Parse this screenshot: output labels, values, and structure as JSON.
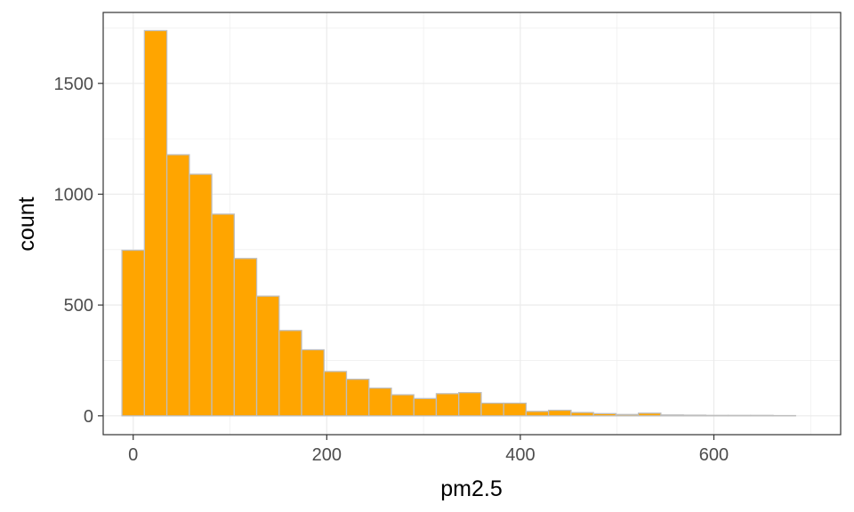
{
  "chart_data": {
    "type": "bar",
    "subtype": "histogram",
    "title": "",
    "xlabel": "pm2.5",
    "ylabel": "count",
    "xlim": [
      -31,
      731
    ],
    "ylim": [
      -85,
      1820
    ],
    "x_ticks": [
      0,
      200,
      400,
      600
    ],
    "y_ticks": [
      0,
      500,
      1000,
      1500
    ],
    "x_tick_labels": [
      "0",
      "200",
      "400",
      "600"
    ],
    "y_tick_labels": [
      "0",
      "500",
      "1000",
      "1500"
    ],
    "bin_width": 23.2,
    "bin_start": -11.6,
    "values": [
      747,
      1738,
      1178,
      1090,
      910,
      710,
      540,
      385,
      298,
      200,
      165,
      125,
      95,
      78,
      100,
      105,
      57,
      57,
      20,
      25,
      15,
      10,
      6,
      12,
      4,
      3,
      2,
      2,
      2,
      1
    ],
    "grid": true,
    "theme": "bw",
    "colors": {
      "bar_fill": "#FFA500",
      "bar_stroke": "#BEBEBE",
      "grid": "#EBEBEB",
      "panel_border": "#333333",
      "tick_text": "#4D4D4D"
    }
  }
}
